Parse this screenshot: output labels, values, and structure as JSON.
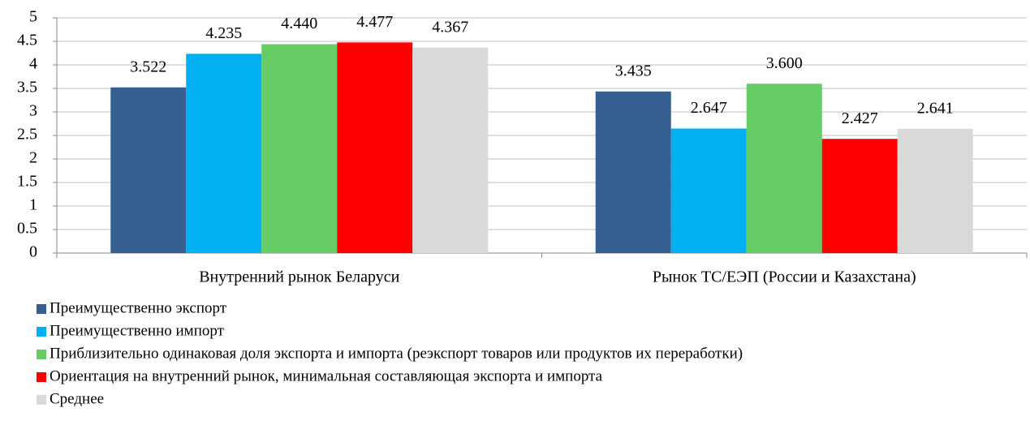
{
  "chart_data": {
    "type": "bar",
    "categories": [
      "Внутренний рынок Беларуси",
      "Рынок ТС/ЕЭП (России и Казахстана)"
    ],
    "series": [
      {
        "name": "Преимущественно экспорт",
        "color": "#376092",
        "values": [
          3.522,
          3.435
        ],
        "value_labels": [
          "3.522",
          "3.435"
        ]
      },
      {
        "name": "Преимущественно импорт",
        "color": "#00b0f0",
        "values": [
          4.235,
          2.647
        ],
        "value_labels": [
          "4.235",
          "2.647"
        ]
      },
      {
        "name": "Приблизительно одинаковая доля экспорта и импорта (реэкспорт товаров или продуктов их переработки)",
        "color": "#66cc66",
        "values": [
          4.44,
          3.6
        ],
        "value_labels": [
          "4.440",
          "3.600"
        ]
      },
      {
        "name": "Ориентация на внутренний рынок, минимальная составляющая экспорта и импорта",
        "color": "#ff0000",
        "values": [
          4.477,
          2.427
        ],
        "value_labels": [
          "4.477",
          "2.427"
        ]
      },
      {
        "name": "Среднее",
        "color": "#d9d9d9",
        "values": [
          4.367,
          2.641
        ],
        "value_labels": [
          "4.367",
          "2.641"
        ]
      }
    ],
    "ylim": [
      0,
      5
    ],
    "yticks": [
      0,
      0.5,
      1,
      1.5,
      2,
      2.5,
      3,
      3.5,
      4,
      4.5,
      5
    ],
    "grid": true,
    "legend": "bottom"
  }
}
